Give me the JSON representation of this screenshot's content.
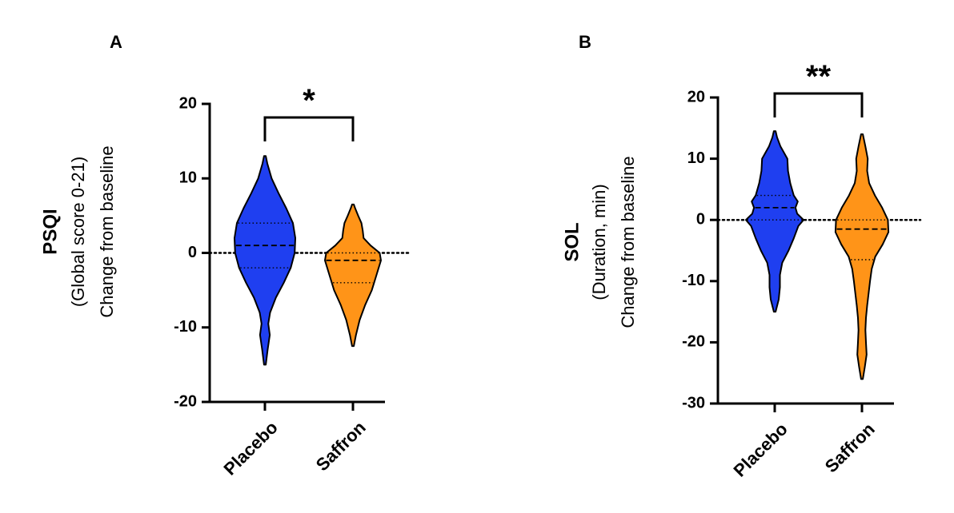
{
  "chart_data": [
    {
      "panel": "A",
      "type": "violin",
      "ylabel_lines": [
        "PSQI",
        "(Global score 0-21)",
        "Change from baseline"
      ],
      "ylim": [
        -20,
        20
      ],
      "yticks": [
        20,
        10,
        0,
        -10,
        -20
      ],
      "ytick_labels": [
        "20",
        "10",
        "0",
        "-10",
        "-20"
      ],
      "categories": [
        "Placebo",
        "Saffron"
      ],
      "reference_line": 0,
      "significance": {
        "from": "Placebo",
        "to": "Saffron",
        "label": "*",
        "y": 18
      },
      "series": [
        {
          "category": "Placebo",
          "color": "#1f3ff0",
          "range": [
            -15,
            13
          ],
          "median": 1,
          "q1": -2,
          "q3": 4,
          "density": [
            [
              -15,
              0.03
            ],
            [
              -13,
              0.09
            ],
            [
              -11,
              0.16
            ],
            [
              -9.5,
              0.11
            ],
            [
              -8,
              0.17
            ],
            [
              -6,
              0.36
            ],
            [
              -4,
              0.62
            ],
            [
              -2,
              0.85
            ],
            [
              0,
              0.98
            ],
            [
              2,
              1.0
            ],
            [
              4,
              0.92
            ],
            [
              6,
              0.7
            ],
            [
              8,
              0.45
            ],
            [
              10,
              0.22
            ],
            [
              12,
              0.08
            ],
            [
              13,
              0.03
            ]
          ]
        },
        {
          "category": "Saffron",
          "color": "#ff9418",
          "range": [
            -12.5,
            6.5
          ],
          "median": -1,
          "q1": -4,
          "q3": 0,
          "density": [
            [
              -12.5,
              0.03
            ],
            [
              -11,
              0.1
            ],
            [
              -9,
              0.22
            ],
            [
              -7,
              0.4
            ],
            [
              -5,
              0.62
            ],
            [
              -3,
              0.77
            ],
            [
              -1,
              0.92
            ],
            [
              0,
              0.88
            ],
            [
              1,
              0.58
            ],
            [
              2,
              0.35
            ],
            [
              3,
              0.32
            ],
            [
              4,
              0.28
            ],
            [
              5,
              0.17
            ],
            [
              6,
              0.07
            ],
            [
              6.5,
              0.03
            ]
          ]
        }
      ]
    },
    {
      "panel": "B",
      "type": "violin",
      "ylabel_lines": [
        "SOL",
        "(Duration, min)",
        "Change from baseline"
      ],
      "ylim": [
        -30,
        20
      ],
      "yticks": [
        20,
        10,
        0,
        -10,
        -20,
        -30
      ],
      "ytick_labels": [
        "20",
        "10",
        "0",
        "-10",
        "-20",
        "-30"
      ],
      "categories": [
        "Placebo",
        "Saffron"
      ],
      "reference_line": 0,
      "significance": {
        "from": "Placebo",
        "to": "Saffron",
        "label": "**",
        "y": 21
      },
      "series": [
        {
          "category": "Placebo",
          "color": "#1f3ff0",
          "range": [
            -15,
            14.5
          ],
          "median": 2,
          "q1": 0,
          "q3": 4,
          "density": [
            [
              -15,
              0.03
            ],
            [
              -13,
              0.14
            ],
            [
              -11,
              0.18
            ],
            [
              -9,
              0.18
            ],
            [
              -7,
              0.26
            ],
            [
              -5,
              0.48
            ],
            [
              -3,
              0.66
            ],
            [
              -1,
              0.82
            ],
            [
              0,
              1.0
            ],
            [
              1,
              0.78
            ],
            [
              2,
              0.72
            ],
            [
              3,
              0.8
            ],
            [
              4,
              0.66
            ],
            [
              6,
              0.54
            ],
            [
              8,
              0.46
            ],
            [
              10,
              0.44
            ],
            [
              12,
              0.2
            ],
            [
              13.5,
              0.08
            ],
            [
              14.5,
              0.03
            ]
          ]
        },
        {
          "category": "Saffron",
          "color": "#ff9418",
          "range": [
            -26,
            14
          ],
          "median": -1.5,
          "q1": -6.5,
          "q3": 0,
          "density": [
            [
              -26,
              0.03
            ],
            [
              -24,
              0.1
            ],
            [
              -22,
              0.16
            ],
            [
              -20,
              0.14
            ],
            [
              -18,
              0.12
            ],
            [
              -16,
              0.14
            ],
            [
              -14,
              0.18
            ],
            [
              -12,
              0.23
            ],
            [
              -10,
              0.28
            ],
            [
              -8,
              0.34
            ],
            [
              -6,
              0.46
            ],
            [
              -4,
              0.72
            ],
            [
              -2,
              0.92
            ],
            [
              0,
              0.9
            ],
            [
              2,
              0.7
            ],
            [
              4,
              0.45
            ],
            [
              6,
              0.25
            ],
            [
              8,
              0.18
            ],
            [
              10,
              0.2
            ],
            [
              12,
              0.12
            ],
            [
              14,
              0.03
            ]
          ]
        }
      ]
    }
  ]
}
